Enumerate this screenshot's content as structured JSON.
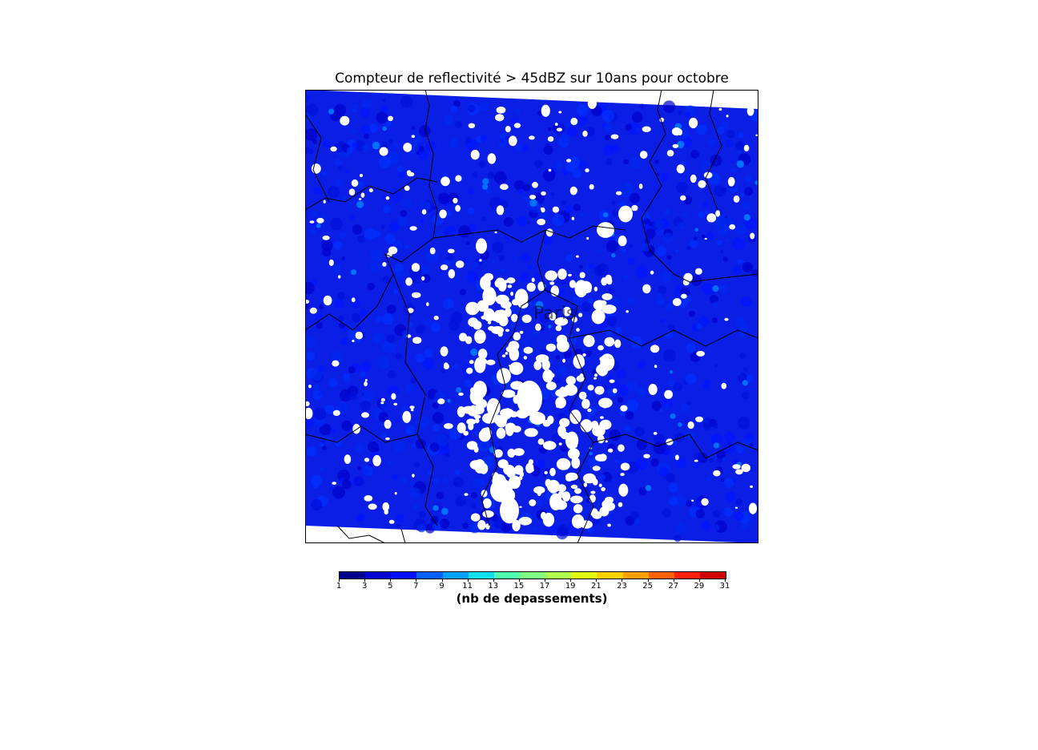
{
  "title": "Compteur de reflectivité > 45dBZ sur 10ans pour octobre",
  "map": {
    "place_label": "Paris",
    "background_color": "#0a1ee6",
    "no_data_color": "#ffffff",
    "border_color": "#000000"
  },
  "colorbar": {
    "label": "(nb de depassements)",
    "min": 1,
    "max": 31,
    "step": 2,
    "ticks": [
      "1",
      "3",
      "5",
      "7",
      "9",
      "11",
      "13",
      "15",
      "17",
      "19",
      "21",
      "23",
      "25",
      "27",
      "29",
      "31"
    ],
    "colors": [
      "#00008f",
      "#0000d0",
      "#0010ff",
      "#0060ff",
      "#00a0ff",
      "#10e0f0",
      "#50ffb0",
      "#80ff80",
      "#b0ff50",
      "#e0ff10",
      "#ffd000",
      "#ffa000",
      "#ff6000",
      "#ff2000",
      "#d00000"
    ]
  }
}
